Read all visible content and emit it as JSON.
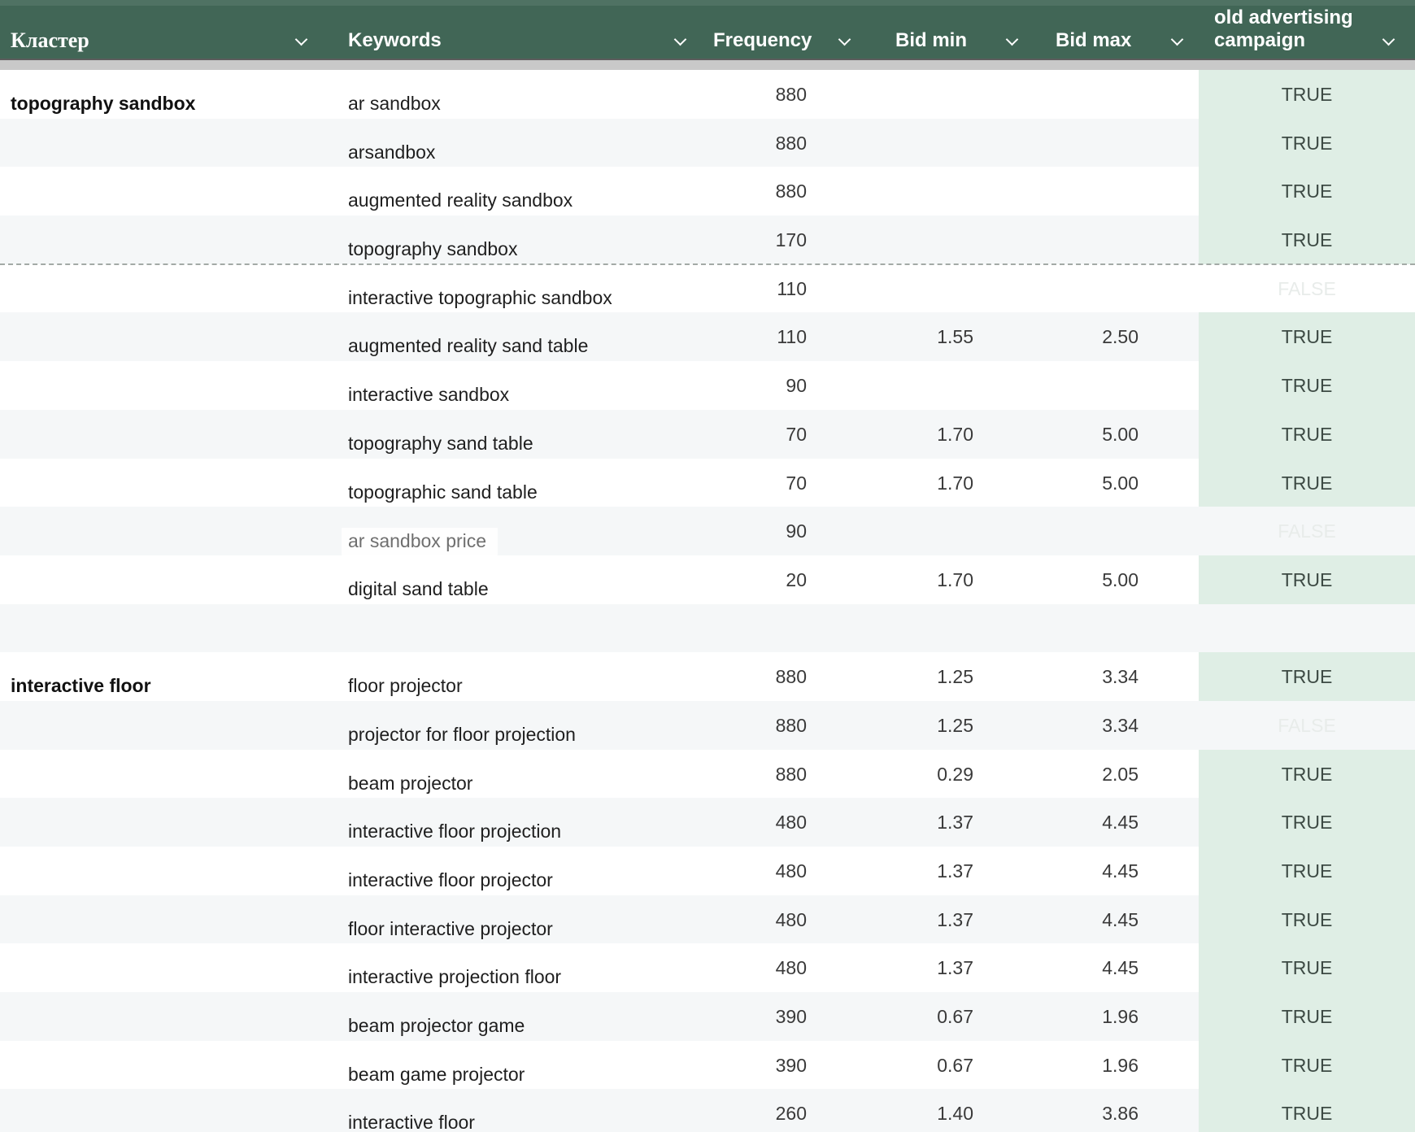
{
  "header": {
    "cluster": "Кластер",
    "keywords": "Keywords",
    "frequency": "Frequency",
    "bid_min": "Bid min",
    "bid_max": "Bid max",
    "campaign": "old advertising campaign"
  },
  "icons": {
    "sort_dropdown": "chevron-down-icon"
  },
  "colors": {
    "header_bg": "#416656",
    "header_text": "#ffffff",
    "stripe": "#f5f7f8",
    "divider": "#c9c9c9",
    "campaign_true_bg": "#dfeee5",
    "true_text": "#3d4a44",
    "false_text": "#e8ecea"
  },
  "rows": [
    {
      "cluster": "topography sandbox",
      "keyword": "ar sandbox",
      "frequency": "880",
      "bid_min": "",
      "bid_max": "",
      "campaign": "TRUE"
    },
    {
      "cluster": "",
      "keyword": "arsandbox",
      "frequency": "880",
      "bid_min": "",
      "bid_max": "",
      "campaign": "TRUE"
    },
    {
      "cluster": "",
      "keyword": "augmented reality sandbox",
      "frequency": "880",
      "bid_min": "",
      "bid_max": "",
      "campaign": "TRUE"
    },
    {
      "cluster": "",
      "keyword": "topography sandbox",
      "frequency": "170",
      "bid_min": "",
      "bid_max": "",
      "campaign": "TRUE"
    },
    {
      "cluster": "",
      "keyword": "interactive topographic sandbox",
      "frequency": "110",
      "bid_min": "",
      "bid_max": "",
      "campaign": "FALSE",
      "dashed_top": true
    },
    {
      "cluster": "",
      "keyword": "augmented reality sand table",
      "frequency": "110",
      "bid_min": "1.55",
      "bid_max": "2.50",
      "campaign": "TRUE"
    },
    {
      "cluster": "",
      "keyword": "interactive sandbox",
      "frequency": "90",
      "bid_min": "",
      "bid_max": "",
      "campaign": "TRUE"
    },
    {
      "cluster": "",
      "keyword": "topography sand table",
      "frequency": "70",
      "bid_min": "1.70",
      "bid_max": "5.00",
      "campaign": "TRUE"
    },
    {
      "cluster": "",
      "keyword": "topographic sand table",
      "frequency": "70",
      "bid_min": "1.70",
      "bid_max": "5.00",
      "campaign": "TRUE"
    },
    {
      "cluster": "",
      "keyword": "ar sandbox price",
      "frequency": "90",
      "bid_min": "",
      "bid_max": "",
      "campaign": "FALSE",
      "muted_keyword": true
    },
    {
      "cluster": "",
      "keyword": "digital sand table",
      "frequency": "20",
      "bid_min": "1.70",
      "bid_max": "5.00",
      "campaign": "TRUE"
    },
    {
      "cluster": "",
      "keyword": "",
      "frequency": "",
      "bid_min": "",
      "bid_max": "",
      "campaign": ""
    },
    {
      "cluster": "interactive floor",
      "keyword": "floor projector",
      "frequency": "880",
      "bid_min": "1.25",
      "bid_max": "3.34",
      "campaign": "TRUE"
    },
    {
      "cluster": "",
      "keyword": "projector for floor projection",
      "frequency": "880",
      "bid_min": "1.25",
      "bid_max": "3.34",
      "campaign": "FALSE"
    },
    {
      "cluster": "",
      "keyword": "beam projector",
      "frequency": "880",
      "bid_min": "0.29",
      "bid_max": "2.05",
      "campaign": "TRUE"
    },
    {
      "cluster": "",
      "keyword": "interactive floor projection",
      "frequency": "480",
      "bid_min": "1.37",
      "bid_max": "4.45",
      "campaign": "TRUE"
    },
    {
      "cluster": "",
      "keyword": "interactive floor projector",
      "frequency": "480",
      "bid_min": "1.37",
      "bid_max": "4.45",
      "campaign": "TRUE"
    },
    {
      "cluster": "",
      "keyword": "floor interactive projector",
      "frequency": "480",
      "bid_min": "1.37",
      "bid_max": "4.45",
      "campaign": "TRUE"
    },
    {
      "cluster": "",
      "keyword": "interactive projection floor",
      "frequency": "480",
      "bid_min": "1.37",
      "bid_max": "4.45",
      "campaign": "TRUE"
    },
    {
      "cluster": "",
      "keyword": "beam projector game",
      "frequency": "390",
      "bid_min": "0.67",
      "bid_max": "1.96",
      "campaign": "TRUE"
    },
    {
      "cluster": "",
      "keyword": "beam game projector",
      "frequency": "390",
      "bid_min": "0.67",
      "bid_max": "1.96",
      "campaign": "TRUE"
    },
    {
      "cluster": "",
      "keyword": "interactive floor",
      "frequency": "260",
      "bid_min": "1.40",
      "bid_max": "3.86",
      "campaign": "TRUE"
    }
  ]
}
